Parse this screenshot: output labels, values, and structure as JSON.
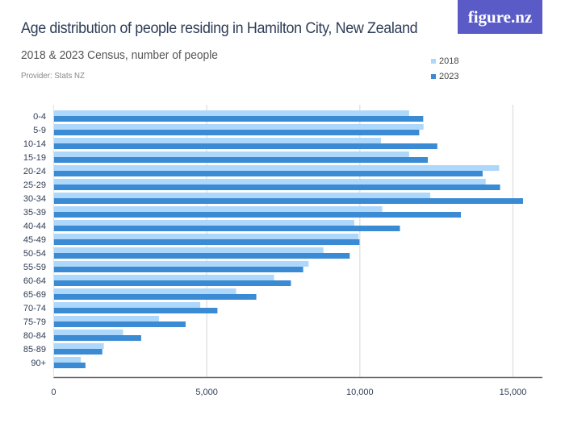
{
  "logo": "figure.nz",
  "colors": {
    "2018": "#aed8fb",
    "2023": "#3a8ad4",
    "grid": "#e3e3e3",
    "axis": "#666666"
  },
  "chart_data": {
    "type": "bar",
    "orientation": "horizontal",
    "title": "Age distribution of people residing in Hamilton City, New Zealand",
    "subtitle": "2018 & 2023 Census, number of people",
    "provider": "Provider: Stats NZ",
    "categories": [
      "0-4",
      "5-9",
      "10-14",
      "15-19",
      "20-24",
      "25-29",
      "30-34",
      "35-39",
      "40-44",
      "45-49",
      "50-54",
      "55-59",
      "60-64",
      "65-69",
      "70-74",
      "75-79",
      "80-84",
      "85-89",
      "90+"
    ],
    "series": [
      {
        "name": "2018",
        "values": [
          11610,
          12080,
          10690,
          11610,
          14550,
          14110,
          12300,
          10730,
          9820,
          9960,
          8810,
          8330,
          7200,
          5960,
          4790,
          3440,
          2270,
          1640,
          890
        ]
      },
      {
        "name": "2023",
        "values": [
          12070,
          11940,
          12530,
          12220,
          14010,
          14580,
          15330,
          13300,
          11310,
          9990,
          9670,
          8150,
          7750,
          6620,
          5350,
          4310,
          2860,
          1590,
          1040
        ]
      }
    ],
    "xlim": [
      0,
      15800
    ],
    "xticks": [
      0,
      5000,
      10000,
      15000
    ],
    "xtick_labels": [
      "0",
      "5,000",
      "10,000",
      "15,000"
    ],
    "grid": true,
    "legend": "top-right"
  }
}
